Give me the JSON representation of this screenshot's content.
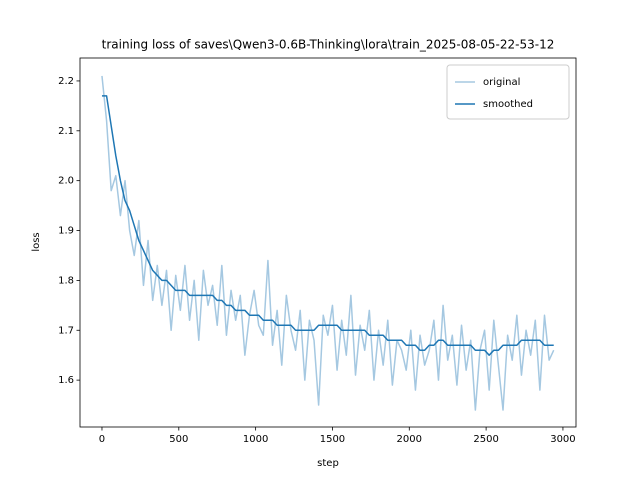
{
  "chart_data": {
    "type": "line",
    "title": "training loss of saves\\Qwen3-0.6B-Thinking\\lora\\train_2025-08-05-22-53-12",
    "x_label": "step",
    "y_label": "loss",
    "x": [
      0,
      30,
      60,
      90,
      120,
      150,
      180,
      210,
      240,
      270,
      300,
      330,
      360,
      390,
      420,
      450,
      480,
      510,
      540,
      570,
      600,
      630,
      660,
      690,
      720,
      750,
      780,
      810,
      840,
      870,
      900,
      930,
      960,
      990,
      1020,
      1050,
      1080,
      1110,
      1140,
      1170,
      1200,
      1230,
      1260,
      1290,
      1320,
      1350,
      1380,
      1410,
      1440,
      1470,
      1500,
      1530,
      1560,
      1590,
      1620,
      1650,
      1680,
      1710,
      1740,
      1770,
      1800,
      1830,
      1860,
      1890,
      1920,
      1950,
      1980,
      2010,
      2040,
      2070,
      2100,
      2130,
      2160,
      2190,
      2220,
      2250,
      2280,
      2310,
      2340,
      2370,
      2400,
      2430,
      2460,
      2490,
      2520,
      2550,
      2580,
      2610,
      2640,
      2670,
      2700,
      2730,
      2760,
      2790,
      2820,
      2850,
      2880,
      2910,
      2940
    ],
    "series": [
      {
        "name": "original",
        "color": "#a5c8e1",
        "values": [
          2.21,
          2.12,
          1.98,
          2.01,
          1.93,
          2.0,
          1.9,
          1.85,
          1.92,
          1.79,
          1.88,
          1.76,
          1.83,
          1.75,
          1.82,
          1.7,
          1.81,
          1.74,
          1.83,
          1.72,
          1.8,
          1.68,
          1.82,
          1.75,
          1.79,
          1.71,
          1.83,
          1.69,
          1.78,
          1.72,
          1.77,
          1.65,
          1.73,
          1.78,
          1.71,
          1.69,
          1.84,
          1.67,
          1.74,
          1.63,
          1.77,
          1.7,
          1.66,
          1.74,
          1.6,
          1.72,
          1.68,
          1.55,
          1.73,
          1.69,
          1.75,
          1.62,
          1.72,
          1.65,
          1.77,
          1.61,
          1.71,
          1.66,
          1.74,
          1.6,
          1.7,
          1.63,
          1.72,
          1.59,
          1.68,
          1.66,
          1.62,
          1.7,
          1.58,
          1.69,
          1.63,
          1.66,
          1.72,
          1.6,
          1.75,
          1.64,
          1.69,
          1.59,
          1.71,
          1.62,
          1.68,
          1.54,
          1.66,
          1.7,
          1.58,
          1.72,
          1.63,
          1.54,
          1.69,
          1.64,
          1.73,
          1.61,
          1.7,
          1.65,
          1.72,
          1.58,
          1.73,
          1.64,
          1.66
        ]
      },
      {
        "name": "smoothed",
        "color": "#1f77b4",
        "values": [
          2.17,
          2.17,
          2.11,
          2.05,
          2.0,
          1.96,
          1.94,
          1.91,
          1.88,
          1.86,
          1.84,
          1.82,
          1.81,
          1.8,
          1.8,
          1.79,
          1.78,
          1.78,
          1.78,
          1.77,
          1.77,
          1.77,
          1.77,
          1.77,
          1.77,
          1.76,
          1.76,
          1.75,
          1.75,
          1.74,
          1.74,
          1.74,
          1.73,
          1.73,
          1.73,
          1.72,
          1.72,
          1.72,
          1.71,
          1.71,
          1.71,
          1.71,
          1.7,
          1.7,
          1.7,
          1.7,
          1.7,
          1.71,
          1.71,
          1.71,
          1.71,
          1.71,
          1.7,
          1.7,
          1.7,
          1.7,
          1.7,
          1.7,
          1.69,
          1.69,
          1.69,
          1.69,
          1.68,
          1.68,
          1.68,
          1.68,
          1.67,
          1.67,
          1.67,
          1.66,
          1.66,
          1.67,
          1.67,
          1.68,
          1.68,
          1.67,
          1.67,
          1.67,
          1.67,
          1.67,
          1.67,
          1.66,
          1.66,
          1.66,
          1.65,
          1.66,
          1.66,
          1.67,
          1.67,
          1.67,
          1.67,
          1.68,
          1.68,
          1.68,
          1.68,
          1.68,
          1.67,
          1.67,
          1.67
        ]
      }
    ],
    "xlim": [
      -143,
      3085
    ],
    "ylim": [
      1.506,
      2.246
    ],
    "xticks": [
      0,
      500,
      1000,
      1500,
      2000,
      2500,
      3000
    ],
    "yticks": [
      1.6,
      1.7,
      1.8,
      1.9,
      {
        "value": 2,
        "label": "2.0"
      },
      2.1,
      2.2
    ],
    "legend": "upper right",
    "grid": false
  }
}
